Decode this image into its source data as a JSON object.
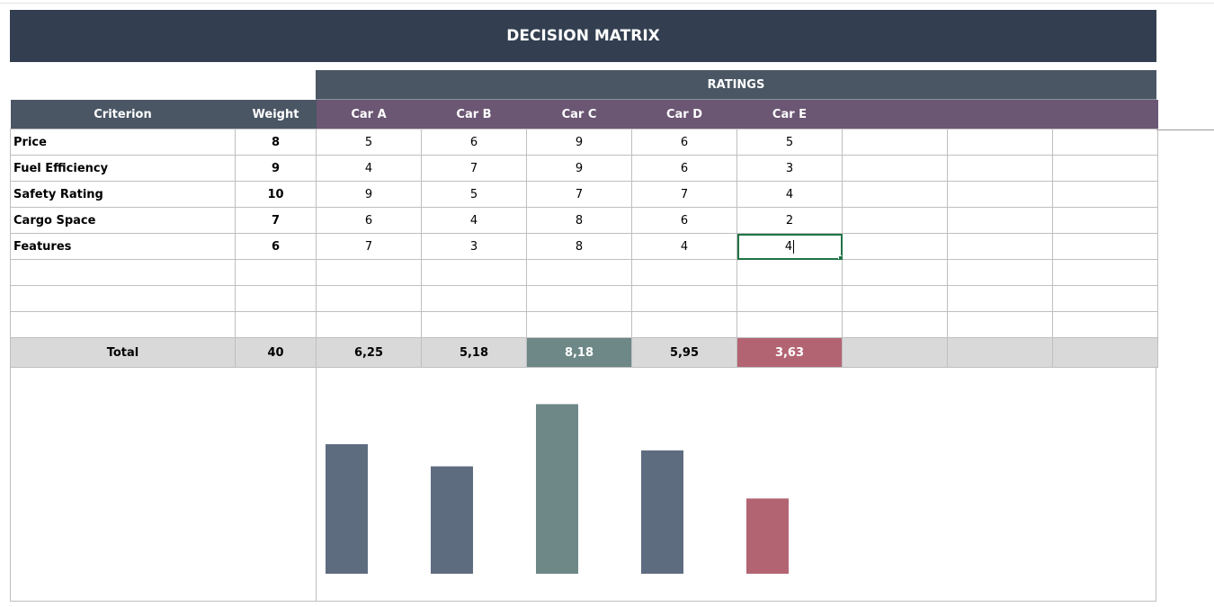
{
  "title": "DECISION MATRIX",
  "ratings_label": "RATINGS",
  "headers": {
    "criterion": "Criterion",
    "weight": "Weight",
    "options": [
      "Car A",
      "Car B",
      "Car C",
      "Car D",
      "Car E"
    ]
  },
  "rows": [
    {
      "criterion": "Price",
      "weight": "8",
      "ratings": [
        "5",
        "6",
        "9",
        "6",
        "5"
      ]
    },
    {
      "criterion": "Fuel Efficiency",
      "weight": "9",
      "ratings": [
        "4",
        "7",
        "9",
        "6",
        "3"
      ]
    },
    {
      "criterion": "Safety Rating",
      "weight": "10",
      "ratings": [
        "9",
        "5",
        "7",
        "7",
        "4"
      ]
    },
    {
      "criterion": "Cargo Space",
      "weight": "7",
      "ratings": [
        "6",
        "4",
        "8",
        "6",
        "2"
      ]
    },
    {
      "criterion": "Features",
      "weight": "6",
      "ratings": [
        "7",
        "3",
        "8",
        "4",
        "4"
      ]
    }
  ],
  "total": {
    "label": "Total",
    "weight": "40",
    "scores": [
      "6,25",
      "5,18",
      "8,18",
      "5,95",
      "3,63"
    ]
  },
  "colors": {
    "banner": "#333f50",
    "header": "#4a5664",
    "options_header": "#6b5673",
    "bar_default": "#5e6c80",
    "best": "#6e8787",
    "worst": "#b36473",
    "total_row": "#d9d9d9",
    "selection": "#217346"
  },
  "chart_data": {
    "type": "bar",
    "categories": [
      "Car A",
      "Car B",
      "Car C",
      "Car D",
      "Car E"
    ],
    "values": [
      6.25,
      5.18,
      8.18,
      5.95,
      3.63
    ],
    "title": "",
    "xlabel": "",
    "ylabel": "",
    "ylim": [
      0,
      9.5
    ],
    "grid": false,
    "legend": "none",
    "highlight": {
      "Car C": "best",
      "Car E": "worst"
    }
  }
}
